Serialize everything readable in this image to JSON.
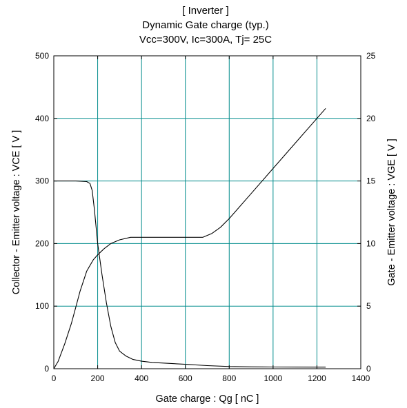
{
  "chart_data": {
    "type": "line",
    "title_lines": [
      "[ Inverter ]",
      "Dynamic Gate charge  (typ.)",
      "Vcc=300V, Ic=300A, Tj= 25C"
    ],
    "xlabel": "Gate charge  :  Qg  [ nC ]",
    "ylabel_left": "Collector - Emitter voltage  :  VCE  [ V ]",
    "ylabel_right": "Gate - Emitter voltage  :  VGE  [ V ]",
    "xlim": [
      0,
      1400
    ],
    "ylim_left": [
      0,
      500
    ],
    "ylim_right": [
      0,
      25
    ],
    "x_ticks": [
      0,
      200,
      400,
      600,
      800,
      1000,
      1200,
      1400
    ],
    "y_ticks_left": [
      0,
      100,
      200,
      300,
      400,
      500
    ],
    "y_ticks_right": [
      0,
      5,
      10,
      15,
      20,
      25
    ],
    "grid": true,
    "line_color": "#000000",
    "grid_color": "#008b8b",
    "series": [
      {
        "axis": "left",
        "x": [
          0,
          50,
          100,
          150,
          165,
          175,
          185,
          200,
          220,
          240,
          260,
          280,
          300,
          330,
          360,
          400,
          450,
          500,
          600,
          700,
          800,
          900,
          1000,
          1100,
          1200,
          1240
        ],
        "y": [
          300,
          300,
          300,
          299,
          296,
          285,
          255,
          200,
          150,
          105,
          68,
          42,
          28,
          20,
          15,
          12,
          10,
          9,
          7,
          5,
          3.5,
          3,
          2.8,
          2.6,
          2.5,
          2.5
        ]
      },
      {
        "axis": "right",
        "x": [
          0,
          20,
          50,
          80,
          100,
          120,
          150,
          180,
          200,
          230,
          260,
          300,
          350,
          400,
          500,
          600,
          680,
          720,
          760,
          800,
          900,
          1000,
          1100,
          1200,
          1240
        ],
        "y": [
          0,
          0.6,
          2.0,
          3.6,
          4.9,
          6.2,
          7.8,
          8.7,
          9.1,
          9.6,
          10.0,
          10.3,
          10.5,
          10.5,
          10.5,
          10.5,
          10.5,
          10.8,
          11.3,
          12.0,
          14.0,
          16.0,
          18.0,
          20.0,
          20.8
        ]
      }
    ]
  }
}
